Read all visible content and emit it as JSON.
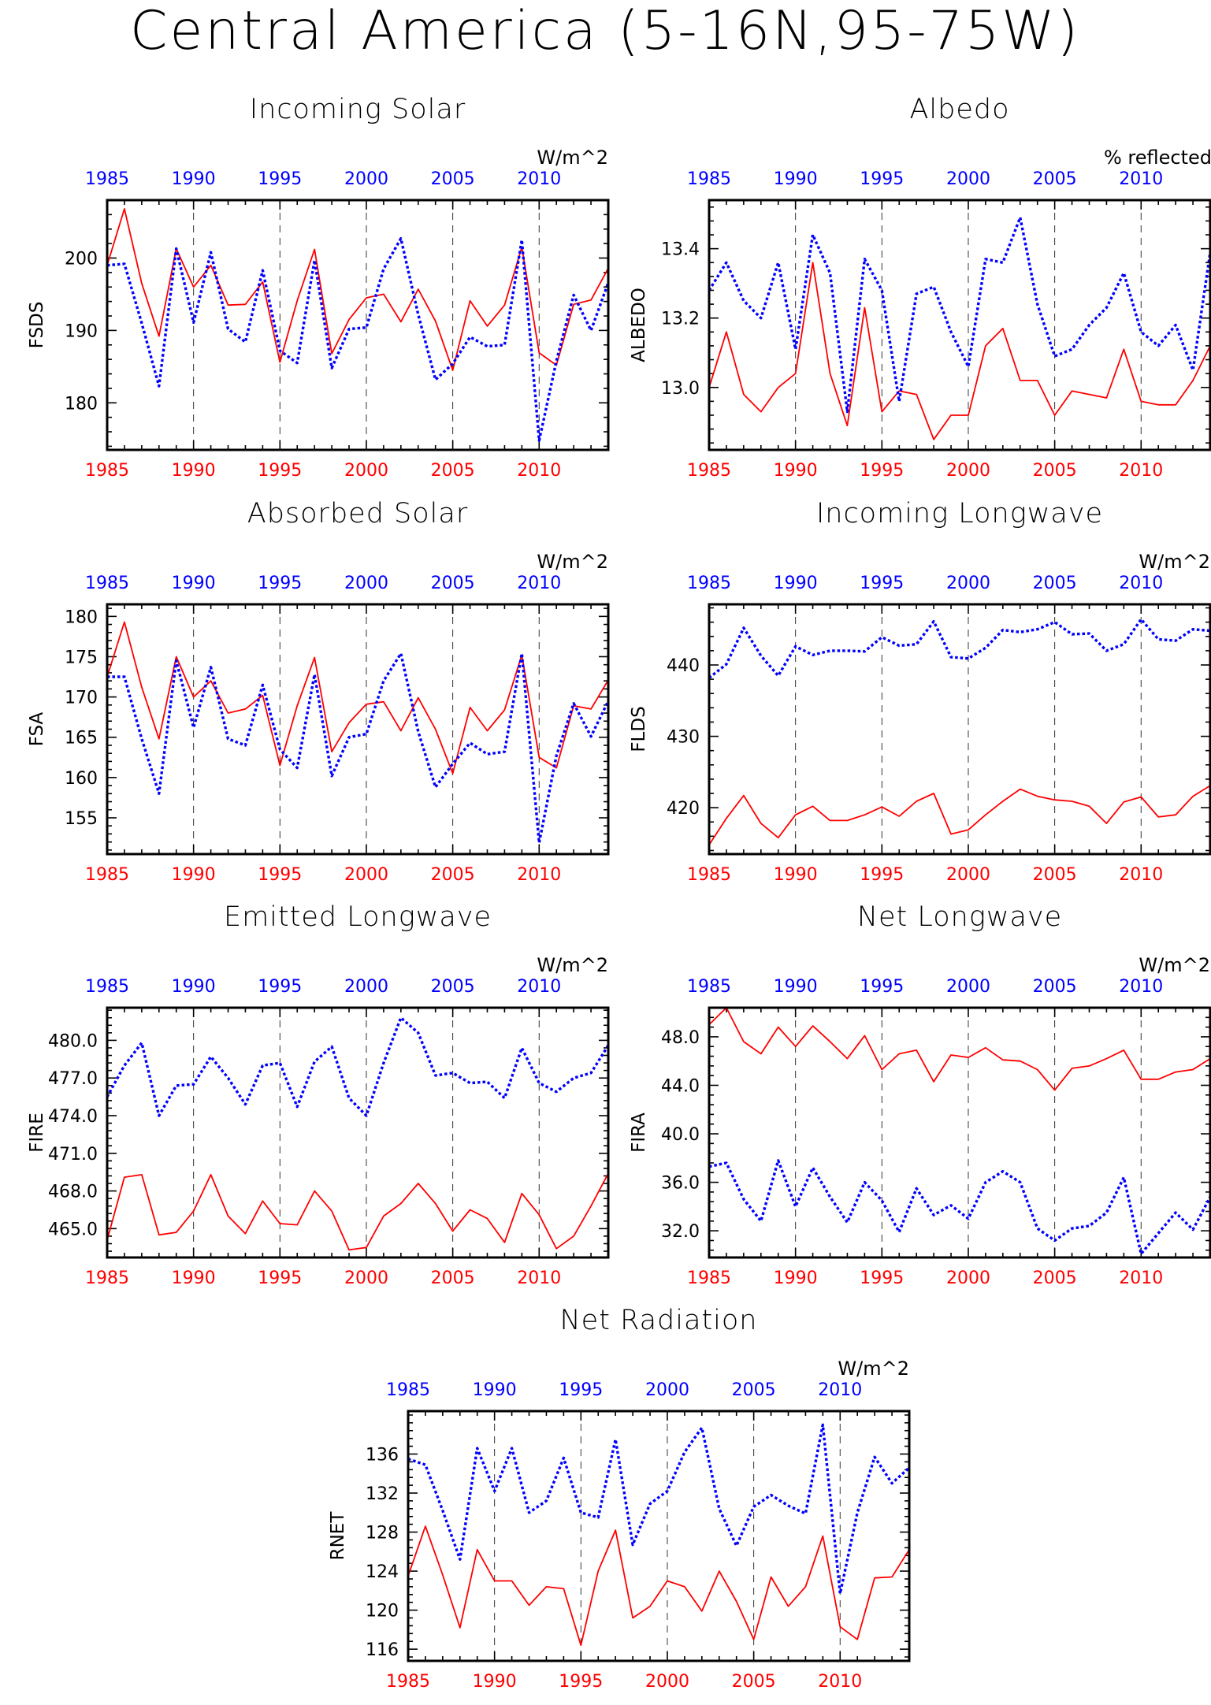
{
  "page_title": "Central America (5-16N,95-75W)",
  "colors": {
    "series_a": "#ff0000",
    "series_b": "#0000ff",
    "frame": "#000000",
    "grid": "#000000"
  },
  "chart_data": [
    {
      "type": "line",
      "title": "Incoming Solar",
      "units": "W/m^2",
      "ylabel": "FSDS",
      "ylim": [
        173.5,
        208
      ],
      "yticks": [
        "180",
        "190",
        "200"
      ],
      "xlim": [
        1985,
        2014
      ],
      "xticks": [
        1985,
        1990,
        1995,
        2000,
        2005,
        2010
      ],
      "x": [
        1985,
        1986,
        1987,
        1988,
        1989,
        1990,
        1991,
        1992,
        1993,
        1994,
        1995,
        1996,
        1997,
        1998,
        1999,
        2000,
        2001,
        2002,
        2003,
        2004,
        2005,
        2006,
        2007,
        2008,
        2009,
        2010,
        2011,
        2012,
        2013,
        2014
      ],
      "grid": "dashed vertical at x ticks",
      "series": [
        {
          "style": "solid",
          "color": "#ff0000",
          "values": [
            199,
            206.8,
            196.5,
            189.2,
            201.3,
            196,
            199,
            193.5,
            193.6,
            196.7,
            185.6,
            194.1,
            201.2,
            186.8,
            191.5,
            194.5,
            195,
            191.2,
            195.7,
            191.3,
            184.5,
            194.1,
            190.6,
            193.5,
            201.5,
            186.9,
            185.2,
            193.6,
            194.2,
            198.6
          ]
        },
        {
          "style": "dotted",
          "color": "#0000ff",
          "values": [
            199,
            199.2,
            191,
            182.3,
            201.3,
            191.1,
            200.8,
            190.2,
            188.4,
            198.3,
            187.2,
            185.5,
            199.7,
            184.8,
            190.2,
            190.4,
            198.5,
            202.7,
            192.2,
            183.2,
            185.4,
            189.1,
            187.8,
            188,
            202.5,
            174.8,
            185.8,
            194.9,
            190,
            196.6
          ]
        }
      ]
    },
    {
      "type": "line",
      "title": "Albedo",
      "units": "% reflected",
      "ylabel": "ALBEDO",
      "ylim": [
        12.82,
        13.54
      ],
      "yticks": [
        "13.0",
        "13.2",
        "13.4"
      ],
      "xlim": [
        1985,
        2014
      ],
      "xticks": [
        1985,
        1990,
        1995,
        2000,
        2005,
        2010
      ],
      "x": [
        1985,
        1986,
        1987,
        1988,
        1989,
        1990,
        1991,
        1992,
        1993,
        1994,
        1995,
        1996,
        1997,
        1998,
        1999,
        2000,
        2001,
        2002,
        2003,
        2004,
        2005,
        2006,
        2007,
        2008,
        2009,
        2010,
        2011,
        2012,
        2013,
        2014
      ],
      "grid": "dashed vertical at x ticks",
      "series": [
        {
          "style": "solid",
          "color": "#ff0000",
          "values": [
            13,
            13.16,
            12.98,
            12.93,
            13,
            13.04,
            13.36,
            13.04,
            12.89,
            13.23,
            12.93,
            12.99,
            12.98,
            12.85,
            12.92,
            12.92,
            13.12,
            13.17,
            13.02,
            13.02,
            12.92,
            12.99,
            12.98,
            12.97,
            13.11,
            12.96,
            12.95,
            12.95,
            13.02,
            13.12
          ]
        },
        {
          "style": "dotted",
          "color": "#0000ff",
          "values": [
            13.28,
            13.36,
            13.25,
            13.2,
            13.36,
            13.11,
            13.44,
            13.33,
            12.93,
            13.37,
            13.28,
            12.96,
            13.27,
            13.29,
            13.16,
            13.06,
            13.37,
            13.36,
            13.49,
            13.24,
            13.09,
            13.11,
            13.18,
            13.23,
            13.33,
            13.16,
            13.12,
            13.18,
            13.05,
            13.39
          ]
        }
      ]
    },
    {
      "type": "line",
      "title": "Absorbed Solar",
      "units": "W/m^2",
      "ylabel": "FSA",
      "ylim": [
        150.5,
        181.5
      ],
      "yticks": [
        "155",
        "160",
        "165",
        "170",
        "175",
        "180"
      ],
      "xlim": [
        1985,
        2014
      ],
      "xticks": [
        1985,
        1990,
        1995,
        2000,
        2005,
        2010
      ],
      "x": [
        1985,
        1986,
        1987,
        1988,
        1989,
        1990,
        1991,
        1992,
        1993,
        1994,
        1995,
        1996,
        1997,
        1998,
        1999,
        2000,
        2001,
        2002,
        2003,
        2004,
        2005,
        2006,
        2007,
        2008,
        2009,
        2010,
        2011,
        2012,
        2013,
        2014
      ],
      "grid": "dashed vertical at x ticks",
      "series": [
        {
          "style": "solid",
          "color": "#ff0000",
          "values": [
            172.5,
            179.3,
            171.2,
            164.8,
            175,
            170,
            172,
            168,
            168.5,
            170.2,
            161.5,
            168.9,
            174.9,
            163.2,
            166.8,
            169.1,
            169.4,
            165.8,
            169.9,
            166,
            160.5,
            168.7,
            165.8,
            168.4,
            175.2,
            162.5,
            161.2,
            168.9,
            168.5,
            172.1
          ]
        },
        {
          "style": "dotted",
          "color": "#0000ff",
          "values": [
            172.5,
            172.5,
            164.8,
            158,
            174.5,
            166.2,
            173.7,
            164.8,
            164,
            171.5,
            163.5,
            161.2,
            172.8,
            160.2,
            165,
            165.4,
            172,
            175.4,
            165.7,
            158.8,
            161.7,
            164.3,
            162.9,
            163.2,
            175.4,
            151.9,
            162.7,
            169.2,
            165.1,
            169.5
          ]
        }
      ]
    },
    {
      "type": "line",
      "title": "Incoming Longwave",
      "units": "W/m^2",
      "ylabel": "FLDS",
      "ylim": [
        413.5,
        448.5
      ],
      "yticks": [
        "420",
        "430",
        "440"
      ],
      "xlim": [
        1985,
        2014
      ],
      "xticks": [
        1985,
        1990,
        1995,
        2000,
        2005,
        2010
      ],
      "x": [
        1985,
        1986,
        1987,
        1988,
        1989,
        1990,
        1991,
        1992,
        1993,
        1994,
        1995,
        1996,
        1997,
        1998,
        1999,
        2000,
        2001,
        2002,
        2003,
        2004,
        2005,
        2006,
        2007,
        2008,
        2009,
        2010,
        2011,
        2012,
        2013,
        2014
      ],
      "grid": "dashed vertical at x ticks",
      "series": [
        {
          "style": "solid",
          "color": "#ff0000",
          "values": [
            414.8,
            418.5,
            421.7,
            417.8,
            415.8,
            419,
            420.2,
            418.2,
            418.2,
            419,
            420.1,
            418.8,
            420.9,
            422,
            416.3,
            416.9,
            419,
            420.9,
            422.6,
            421.6,
            421.1,
            420.9,
            420.2,
            417.8,
            420.8,
            421.5,
            418.7,
            419,
            421.6,
            423.1
          ]
        },
        {
          "style": "dotted",
          "color": "#0000ff",
          "values": [
            438.2,
            440.1,
            445.2,
            441.3,
            438.5,
            442.6,
            441.4,
            442,
            442,
            441.9,
            443.9,
            442.7,
            442.9,
            446.1,
            441.1,
            440.9,
            442.4,
            444.9,
            444.6,
            445,
            446,
            444.3,
            444.4,
            442,
            442.9,
            446.4,
            443.6,
            443.4,
            445,
            444.8
          ]
        }
      ]
    },
    {
      "type": "line",
      "title": "Emitted Longwave",
      "units": "W/m^2",
      "ylabel": "FIRE",
      "ylim": [
        462.7,
        482.6
      ],
      "yticks": [
        "465.0",
        "468.0",
        "471.0",
        "474.0",
        "477.0",
        "480.0"
      ],
      "xlim": [
        1985,
        2014
      ],
      "xticks": [
        1985,
        1990,
        1995,
        2000,
        2005,
        2010
      ],
      "x": [
        1985,
        1986,
        1987,
        1988,
        1989,
        1990,
        1991,
        1992,
        1993,
        1994,
        1995,
        1996,
        1997,
        1998,
        1999,
        2000,
        2001,
        2002,
        2003,
        2004,
        2005,
        2006,
        2007,
        2008,
        2009,
        2010,
        2011,
        2012,
        2013,
        2014
      ],
      "grid": "dashed vertical at x ticks",
      "series": [
        {
          "style": "solid",
          "color": "#ff0000",
          "values": [
            464.1,
            469.1,
            469.3,
            464.5,
            464.7,
            466.4,
            469.3,
            466,
            464.6,
            467.2,
            465.4,
            465.3,
            468,
            466.4,
            463.3,
            463.5,
            466,
            467,
            468.6,
            467,
            464.8,
            466.5,
            465.8,
            463.9,
            467.8,
            466.1,
            463.4,
            464.4,
            466.8,
            469.4
          ]
        },
        {
          "style": "dotted",
          "color": "#0000ff",
          "values": [
            475.5,
            478,
            479.8,
            474,
            476.4,
            476.5,
            478.7,
            477,
            474.9,
            478,
            478.2,
            474.7,
            478.3,
            479.5,
            475.4,
            474,
            478.2,
            481.8,
            480.6,
            477.2,
            477.4,
            476.6,
            476.7,
            475.4,
            479.4,
            476.6,
            475.9,
            477,
            477.4,
            479.6
          ]
        }
      ]
    },
    {
      "type": "line",
      "title": "Net Longwave",
      "units": "W/m^2",
      "ylabel": "FIRA",
      "ylim": [
        29.8,
        50.4
      ],
      "yticks": [
        "32.0",
        "36.0",
        "40.0",
        "44.0",
        "48.0"
      ],
      "xlim": [
        1985,
        2014
      ],
      "xticks": [
        1985,
        1990,
        1995,
        2000,
        2005,
        2010
      ],
      "x": [
        1985,
        1986,
        1987,
        1988,
        1989,
        1990,
        1991,
        1992,
        1993,
        1994,
        1995,
        1996,
        1997,
        1998,
        1999,
        2000,
        2001,
        2002,
        2003,
        2004,
        2005,
        2006,
        2007,
        2008,
        2009,
        2010,
        2011,
        2012,
        2013,
        2014
      ],
      "grid": "dashed vertical at x ticks",
      "series": [
        {
          "style": "solid",
          "color": "#ff0000",
          "values": [
            49,
            50.4,
            47.6,
            46.6,
            48.8,
            47.2,
            48.9,
            47.6,
            46.2,
            48.1,
            45.3,
            46.6,
            46.9,
            44.3,
            46.5,
            46.3,
            47.1,
            46.1,
            46,
            45.3,
            43.6,
            45.4,
            45.6,
            46.2,
            46.9,
            44.5,
            44.5,
            45.1,
            45.3,
            46.2
          ]
        },
        {
          "style": "dotted",
          "color": "#0000ff",
          "values": [
            37.3,
            37.6,
            34.6,
            32.8,
            37.8,
            34,
            37.2,
            34.8,
            32.7,
            36,
            34.5,
            31.9,
            35.5,
            33.3,
            34.1,
            33,
            36,
            36.9,
            36,
            32.2,
            31.2,
            32.2,
            32.4,
            33.5,
            36.4,
            30.1,
            31.8,
            33.5,
            32.1,
            34.8
          ]
        }
      ]
    },
    {
      "type": "line",
      "title": "Net Radiation",
      "units": "W/m^2",
      "ylabel": "RNET",
      "ylim": [
        114.8,
        140.4
      ],
      "yticks": [
        "116",
        "120",
        "124",
        "128",
        "132",
        "136"
      ],
      "xlim": [
        1985,
        2014
      ],
      "xticks": [
        1985,
        1990,
        1995,
        2000,
        2005,
        2010
      ],
      "x": [
        1985,
        1986,
        1987,
        1988,
        1989,
        1990,
        1991,
        1992,
        1993,
        1994,
        1995,
        1996,
        1997,
        1998,
        1999,
        2000,
        2001,
        2002,
        2003,
        2004,
        2005,
        2006,
        2007,
        2008,
        2009,
        2010,
        2011,
        2012,
        2013,
        2014
      ],
      "grid": "dashed vertical at x ticks",
      "series": [
        {
          "style": "solid",
          "color": "#ff0000",
          "values": [
            123.5,
            128.6,
            123.6,
            118.2,
            126.2,
            123,
            123,
            120.5,
            122.4,
            122.2,
            116.4,
            124,
            128.2,
            119.2,
            120.4,
            123,
            122.4,
            119.9,
            124,
            120.9,
            117,
            123.4,
            120.4,
            122.4,
            127.6,
            118.3,
            117,
            123.3,
            123.4,
            126.2
          ]
        },
        {
          "style": "dotted",
          "color": "#0000ff",
          "values": [
            135.5,
            134.9,
            130.2,
            125.2,
            136.6,
            132.2,
            136.6,
            130,
            131.2,
            135.6,
            130,
            129.5,
            137.5,
            126.7,
            130.9,
            132.2,
            136.2,
            138.7,
            130.4,
            126.6,
            130.6,
            131.8,
            130.7,
            129.9,
            139,
            121.7,
            130,
            135.7,
            133,
            134.6
          ]
        }
      ]
    }
  ]
}
